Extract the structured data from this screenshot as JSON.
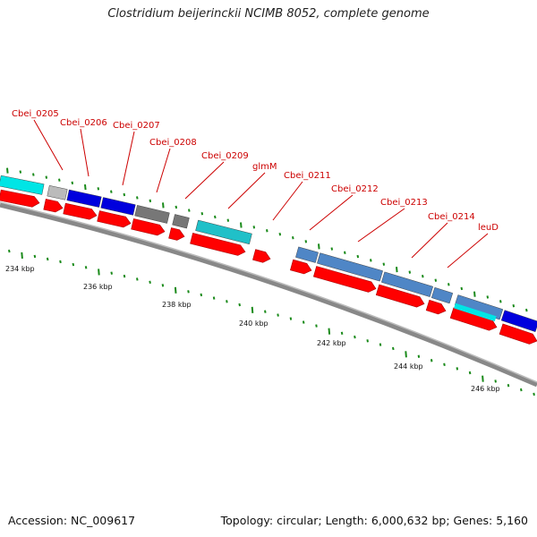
{
  "title": "Clostridium beijerinckii NCIMB 8052, complete genome",
  "footer": {
    "accession": "Accession: NC_009617",
    "topology": "Topology: circular; Length: 6,000,632 bp; Genes: 5,160"
  },
  "colors": {
    "cds": "#ff0000",
    "cyan": "#00e5e5",
    "blue": "#0000dd",
    "steel": "#4f86c6",
    "gray": "#777777",
    "lightgray": "#bbbbbb",
    "teal": "#20c0c8",
    "label": "#cc0000",
    "tick": "#1a8a1a",
    "backbone": "#888888"
  },
  "gene_labels": [
    {
      "text": "Cbei_0205"
    },
    {
      "text": "Cbei_0206"
    },
    {
      "text": "Cbei_0207"
    },
    {
      "text": "Cbei_0208"
    },
    {
      "text": "Cbei_0209"
    },
    {
      "text": "glmM"
    },
    {
      "text": "Cbei_0211"
    },
    {
      "text": "Cbei_0212"
    },
    {
      "text": "Cbei_0213"
    },
    {
      "text": "Cbei_0214"
    },
    {
      "text": "leuD"
    }
  ],
  "tick_labels": [
    "234 kbp",
    "236 kbp",
    "238 kbp",
    "240 kbp",
    "242 kbp",
    "244 kbp",
    "246 kbp"
  ]
}
